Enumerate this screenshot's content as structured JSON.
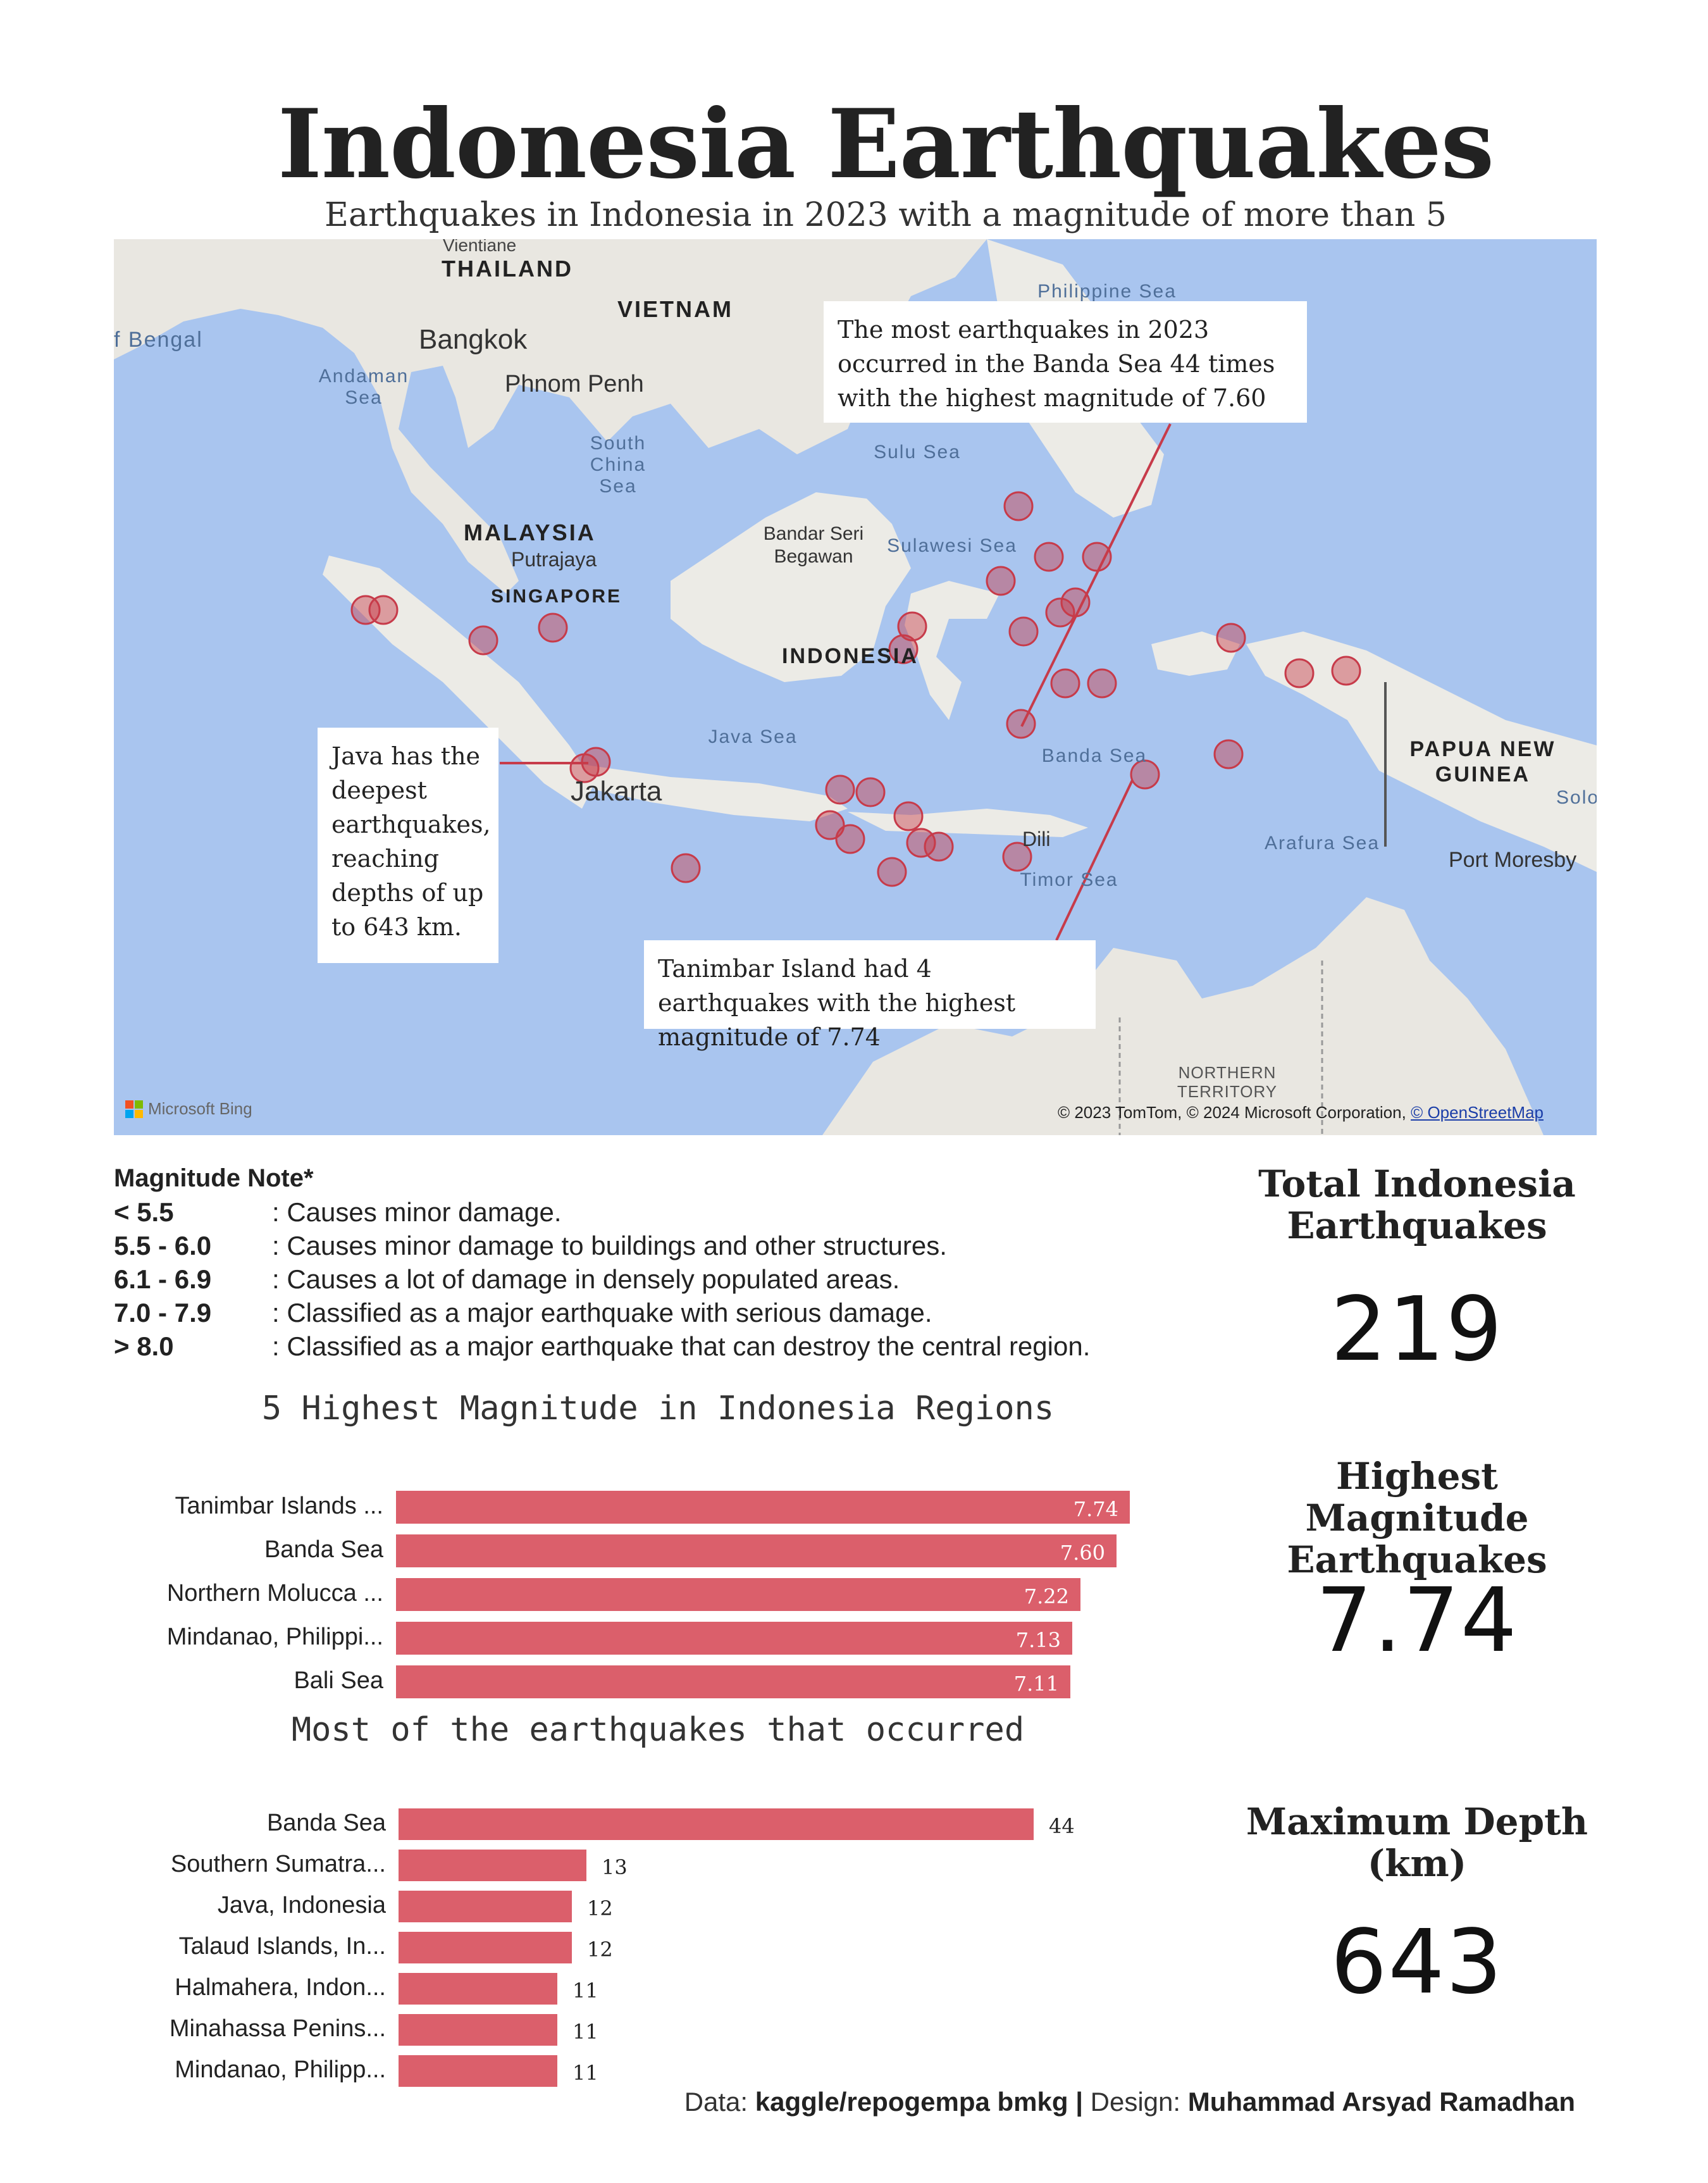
{
  "title": "Indonesia Earthquakes",
  "subtitle": "Earthquakes in Indonesia in 2023 with a magnitude of more than 5",
  "map": {
    "labels": {
      "thailand": "THAILAND",
      "vietnam": "VIETNAM",
      "malaysia": "MALAYSIA",
      "singapore": "SINGAPORE",
      "indonesia": "INDONESIA",
      "papua": "PAPUA NEW GUINEA",
      "bangkok": "Bangkok",
      "phnom_penh": "Phnom Penh",
      "putrajaya": "Putrajaya",
      "bandar": "Bandar Seri Begawan",
      "jakarta": "Jakarta",
      "dili": "Dili",
      "port_moresby": "Port Moresby",
      "bengal": "f Bengal",
      "andaman": "Andaman Sea",
      "south_china": "South China Sea",
      "philippine": "Philippine Sea",
      "sulu": "Sulu Sea",
      "sulawesi": "Sulawesi Sea",
      "java_sea": "Java Sea",
      "banda_sea": "Banda Sea",
      "arafura": "Arafura Sea",
      "timor": "Timor Sea",
      "northern_territory": "NORTHERN TERRITORY",
      "vientiane": "Vientiane",
      "solo": "Solo"
    },
    "callouts": {
      "banda": "The most earthquakes in 2023 occurred in the Banda Sea 44 times with the highest magnitude of 7.60",
      "java": "Java has the deepest earthquakes, reaching depths of up to 643 km.",
      "tanimbar": "Tanimbar Island had 4 earthquakes with the highest magnitude of 7.74"
    },
    "attribution": "© 2023 TomTom, © 2024 Microsoft Corporation,",
    "attribution_link": "© OpenStreetMap",
    "bing": "Microsoft Bing",
    "marker_color": "#c73b4a"
  },
  "magnitude_note": {
    "heading": "Magnitude Note*",
    "rows": [
      {
        "range": "< 5.5",
        "desc": ": Causes minor damage."
      },
      {
        "range": "5.5 - 6.0",
        "desc": ": Causes minor damage to buildings and other structures."
      },
      {
        "range": "6.1 - 6.9",
        "desc": ": Causes a lot of damage in densely populated areas."
      },
      {
        "range": "7.0 - 7.9",
        "desc": ": Classified as a major earthquake with serious damage."
      },
      {
        "range": "> 8.0",
        "desc": ": Classified as a major earthquake that can destroy the central region."
      }
    ]
  },
  "chart_data": [
    {
      "type": "bar",
      "orientation": "horizontal",
      "title": "5 Highest Magnitude in Indonesia Regions",
      "categories": [
        "Tanimbar Islands ...",
        "Banda Sea",
        "Northern Molucca ...",
        "Mindanao, Philippi...",
        "Bali Sea"
      ],
      "values": [
        7.74,
        7.6,
        7.22,
        7.13,
        7.11
      ],
      "value_labels": [
        "7.74",
        "7.60",
        "7.22",
        "7.13",
        "7.11"
      ],
      "color": "#db5f6b"
    },
    {
      "type": "bar",
      "orientation": "horizontal",
      "title": "Most of the earthquakes that occurred",
      "categories": [
        "Banda Sea",
        "Southern Sumatra...",
        "Java, Indonesia",
        "Talaud Islands, In...",
        "Halmahera, Indon...",
        "Minahassa Penins...",
        "Mindanao, Philipp..."
      ],
      "values": [
        44,
        13,
        12,
        12,
        11,
        11,
        11
      ],
      "value_labels": [
        "44",
        "13",
        "12",
        "12",
        "11",
        "11",
        "11"
      ],
      "color": "#db5f6b"
    }
  ],
  "kpis": {
    "total_title": "Total Indonesia Earthquakes",
    "total_value": "219",
    "mag_title": "Highest Magnitude Earthquakes",
    "mag_value": "7.74",
    "depth_title": "Maximum Depth (km)",
    "depth_value": "643"
  },
  "footer": {
    "data_prefix": "Data:",
    "data_source": "kaggle/repogempa bmkg",
    "sep": "|",
    "design_prefix": "Design:",
    "designer": "Muhammad Arsyad Ramadhan"
  }
}
